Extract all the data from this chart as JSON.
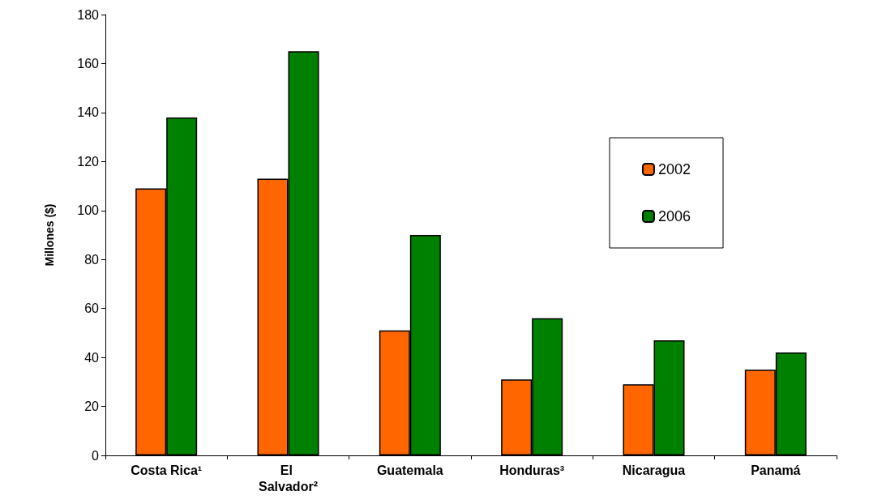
{
  "chart_data": {
    "type": "bar",
    "ylabel": "Millones ($)",
    "categories": [
      "Costa Rica¹",
      "El Salvador²",
      "Guatemala",
      "Honduras³",
      "Nicaragua",
      "Panamá"
    ],
    "series": [
      {
        "name": "2002",
        "color": "#ff6600",
        "values": [
          109,
          113,
          51,
          31,
          29,
          35
        ]
      },
      {
        "name": "2006",
        "color": "#008000",
        "values": [
          138,
          165,
          90,
          56,
          47,
          42
        ]
      }
    ],
    "ylim": [
      0,
      180
    ],
    "yticks": [
      0,
      20,
      40,
      60,
      80,
      100,
      120,
      140,
      160,
      180
    ],
    "grid": false,
    "legend": "right"
  }
}
